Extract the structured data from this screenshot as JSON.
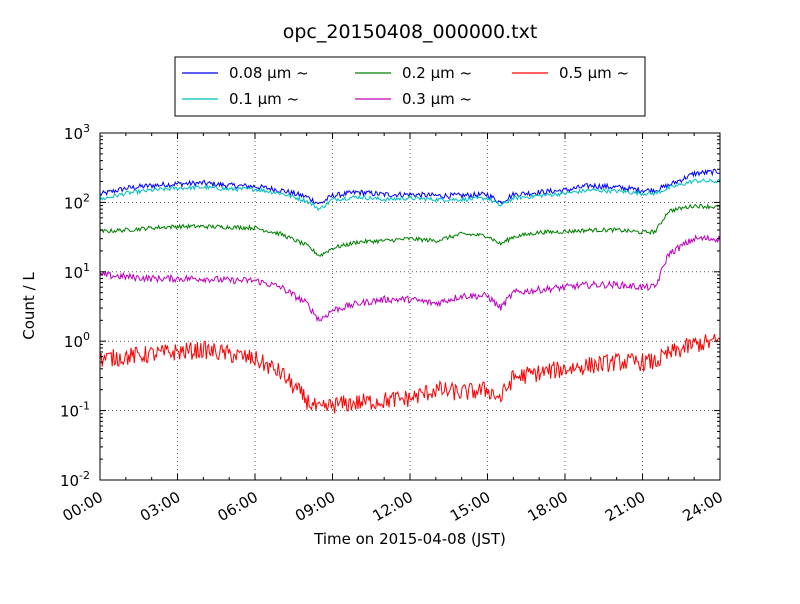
{
  "chart_data": {
    "type": "line",
    "title": "opc_20150408_000000.txt",
    "xlabel": "Time on 2015-04-08 (JST)",
    "ylabel": "Count / L",
    "yscale": "log",
    "ylim": [
      0.01,
      1000
    ],
    "xlim": [
      "00:00",
      "24:00"
    ],
    "grid": true,
    "legend_position": "top",
    "x_ticks": [
      "00:00",
      "03:00",
      "06:00",
      "09:00",
      "12:00",
      "15:00",
      "18:00",
      "21:00",
      "24:00"
    ],
    "y_ticks": [
      {
        "base": "10",
        "exp": "-2",
        "value": 0.01
      },
      {
        "base": "10",
        "exp": "-1",
        "value": 0.1
      },
      {
        "base": "10",
        "exp": "0",
        "value": 1
      },
      {
        "base": "10",
        "exp": "1",
        "value": 10
      },
      {
        "base": "10",
        "exp": "2",
        "value": 100
      },
      {
        "base": "10",
        "exp": "3",
        "value": 1000
      }
    ],
    "x_hours": [
      0,
      1,
      2,
      3,
      4,
      5,
      6,
      7,
      8,
      8.5,
      9,
      10,
      11,
      12,
      13,
      14,
      15,
      15.5,
      16,
      17,
      18,
      19,
      20,
      21,
      21.5,
      22,
      23,
      24
    ],
    "series": [
      {
        "name": "0.08 μm ~",
        "color": "#0000ff",
        "noise": 0.04,
        "values": [
          130,
          160,
          175,
          185,
          190,
          175,
          170,
          150,
          120,
          95,
          125,
          140,
          130,
          130,
          125,
          125,
          130,
          100,
          130,
          140,
          150,
          175,
          165,
          150,
          150,
          175,
          260,
          280
        ]
      },
      {
        "name": "0.1 μm ~",
        "color": "#00bfbf",
        "noise": 0.03,
        "values": [
          110,
          135,
          150,
          160,
          165,
          155,
          155,
          135,
          105,
          80,
          110,
          120,
          110,
          115,
          110,
          110,
          115,
          90,
          115,
          125,
          135,
          150,
          145,
          135,
          135,
          160,
          205,
          200
        ]
      },
      {
        "name": "0.2 μm ~",
        "color": "#008000",
        "noise": 0.03,
        "values": [
          38,
          40,
          43,
          45,
          45,
          44,
          43,
          35,
          24,
          17,
          22,
          27,
          28,
          30,
          28,
          35,
          33,
          25,
          32,
          37,
          38,
          40,
          40,
          37,
          38,
          75,
          90,
          85
        ]
      },
      {
        "name": "0.3 μm ~",
        "color": "#bf00bf",
        "noise": 0.05,
        "values": [
          9,
          8.5,
          8,
          8,
          8,
          7.5,
          7.5,
          6,
          3.5,
          2,
          2.8,
          3.5,
          4,
          4,
          3.5,
          4.5,
          4.5,
          3,
          5,
          5.5,
          6,
          6.5,
          6.5,
          6,
          6,
          18,
          30,
          30
        ]
      },
      {
        "name": "0.5 μm ~",
        "color": "#ff0000",
        "noise": 0.13,
        "values": [
          0.55,
          0.6,
          0.65,
          0.7,
          0.75,
          0.65,
          0.55,
          0.35,
          0.14,
          0.1,
          0.12,
          0.13,
          0.14,
          0.15,
          0.2,
          0.18,
          0.2,
          0.15,
          0.3,
          0.35,
          0.4,
          0.45,
          0.5,
          0.5,
          0.5,
          0.65,
          0.9,
          1.0
        ]
      }
    ]
  }
}
